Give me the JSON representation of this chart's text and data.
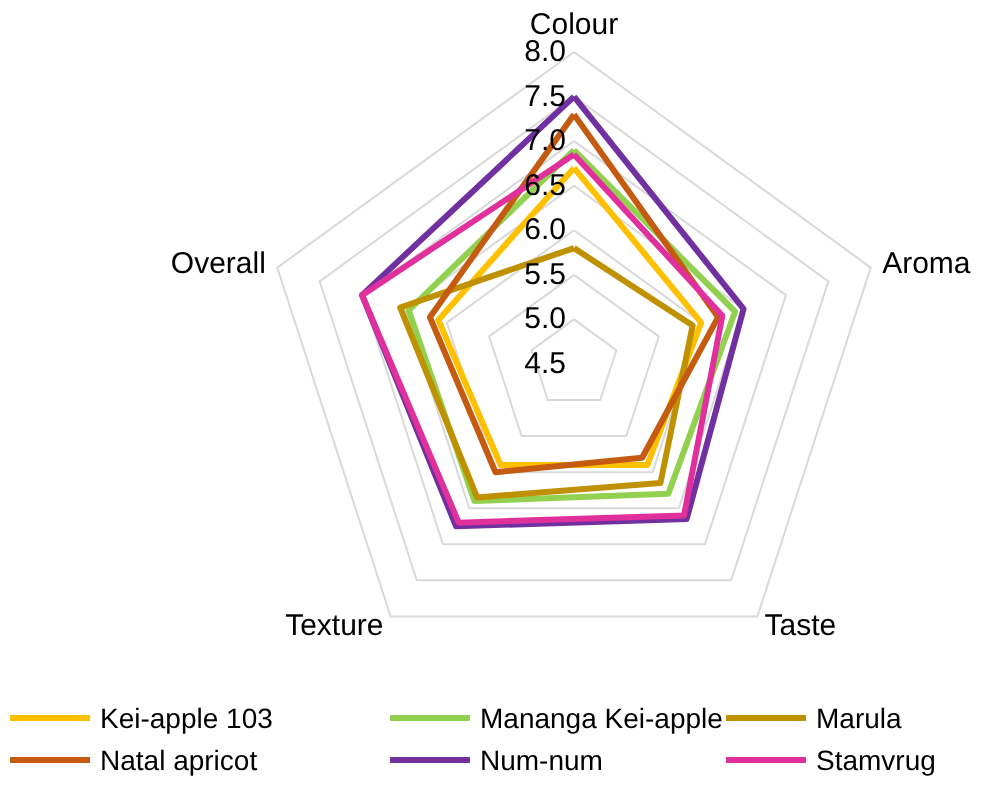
{
  "chart_data": {
    "type": "radar",
    "categories": [
      "Colour",
      "Aroma",
      "Taste",
      "Texture",
      "Overall"
    ],
    "ylim": [
      4.5,
      8.0
    ],
    "yticks": [
      {
        "value": 4.5,
        "label": "4.5"
      },
      {
        "value": 5,
        "label": "5.0"
      },
      {
        "value": 5.5,
        "label": "5.5"
      },
      {
        "value": 6,
        "label": "6.0"
      },
      {
        "value": 6.5,
        "label": "6.5"
      },
      {
        "value": 7,
        "label": "7.0"
      },
      {
        "value": 7.5,
        "label": "7.5"
      },
      {
        "value": 8,
        "label": "8.0"
      }
    ],
    "series": [
      {
        "name": "Kei-apple 103",
        "color": "#ffc000",
        "values": [
          6.7,
          6.0,
          5.9,
          5.9,
          6.1
        ]
      },
      {
        "name": "Mananga Kei-apple",
        "color": "#92d050",
        "values": [
          6.9,
          6.4,
          6.3,
          6.4,
          6.45
        ]
      },
      {
        "name": "Marula",
        "color": "#bf9000",
        "values": [
          5.8,
          5.9,
          6.15,
          6.35,
          6.55
        ]
      },
      {
        "name": "Natal apricot",
        "color": "#c55a11",
        "values": [
          7.3,
          6.2,
          5.8,
          6.0,
          6.2
        ]
      },
      {
        "name": "Num-num",
        "color": "#7030a0",
        "values": [
          7.5,
          6.5,
          6.65,
          6.75,
          7.0
        ]
      },
      {
        "name": "Stamvrug",
        "color": "#e0309b",
        "values": [
          6.85,
          6.25,
          6.6,
          6.7,
          7.0
        ]
      }
    ],
    "grid": true,
    "legend": "bottom",
    "line_style": "solid",
    "marker": "none"
  }
}
